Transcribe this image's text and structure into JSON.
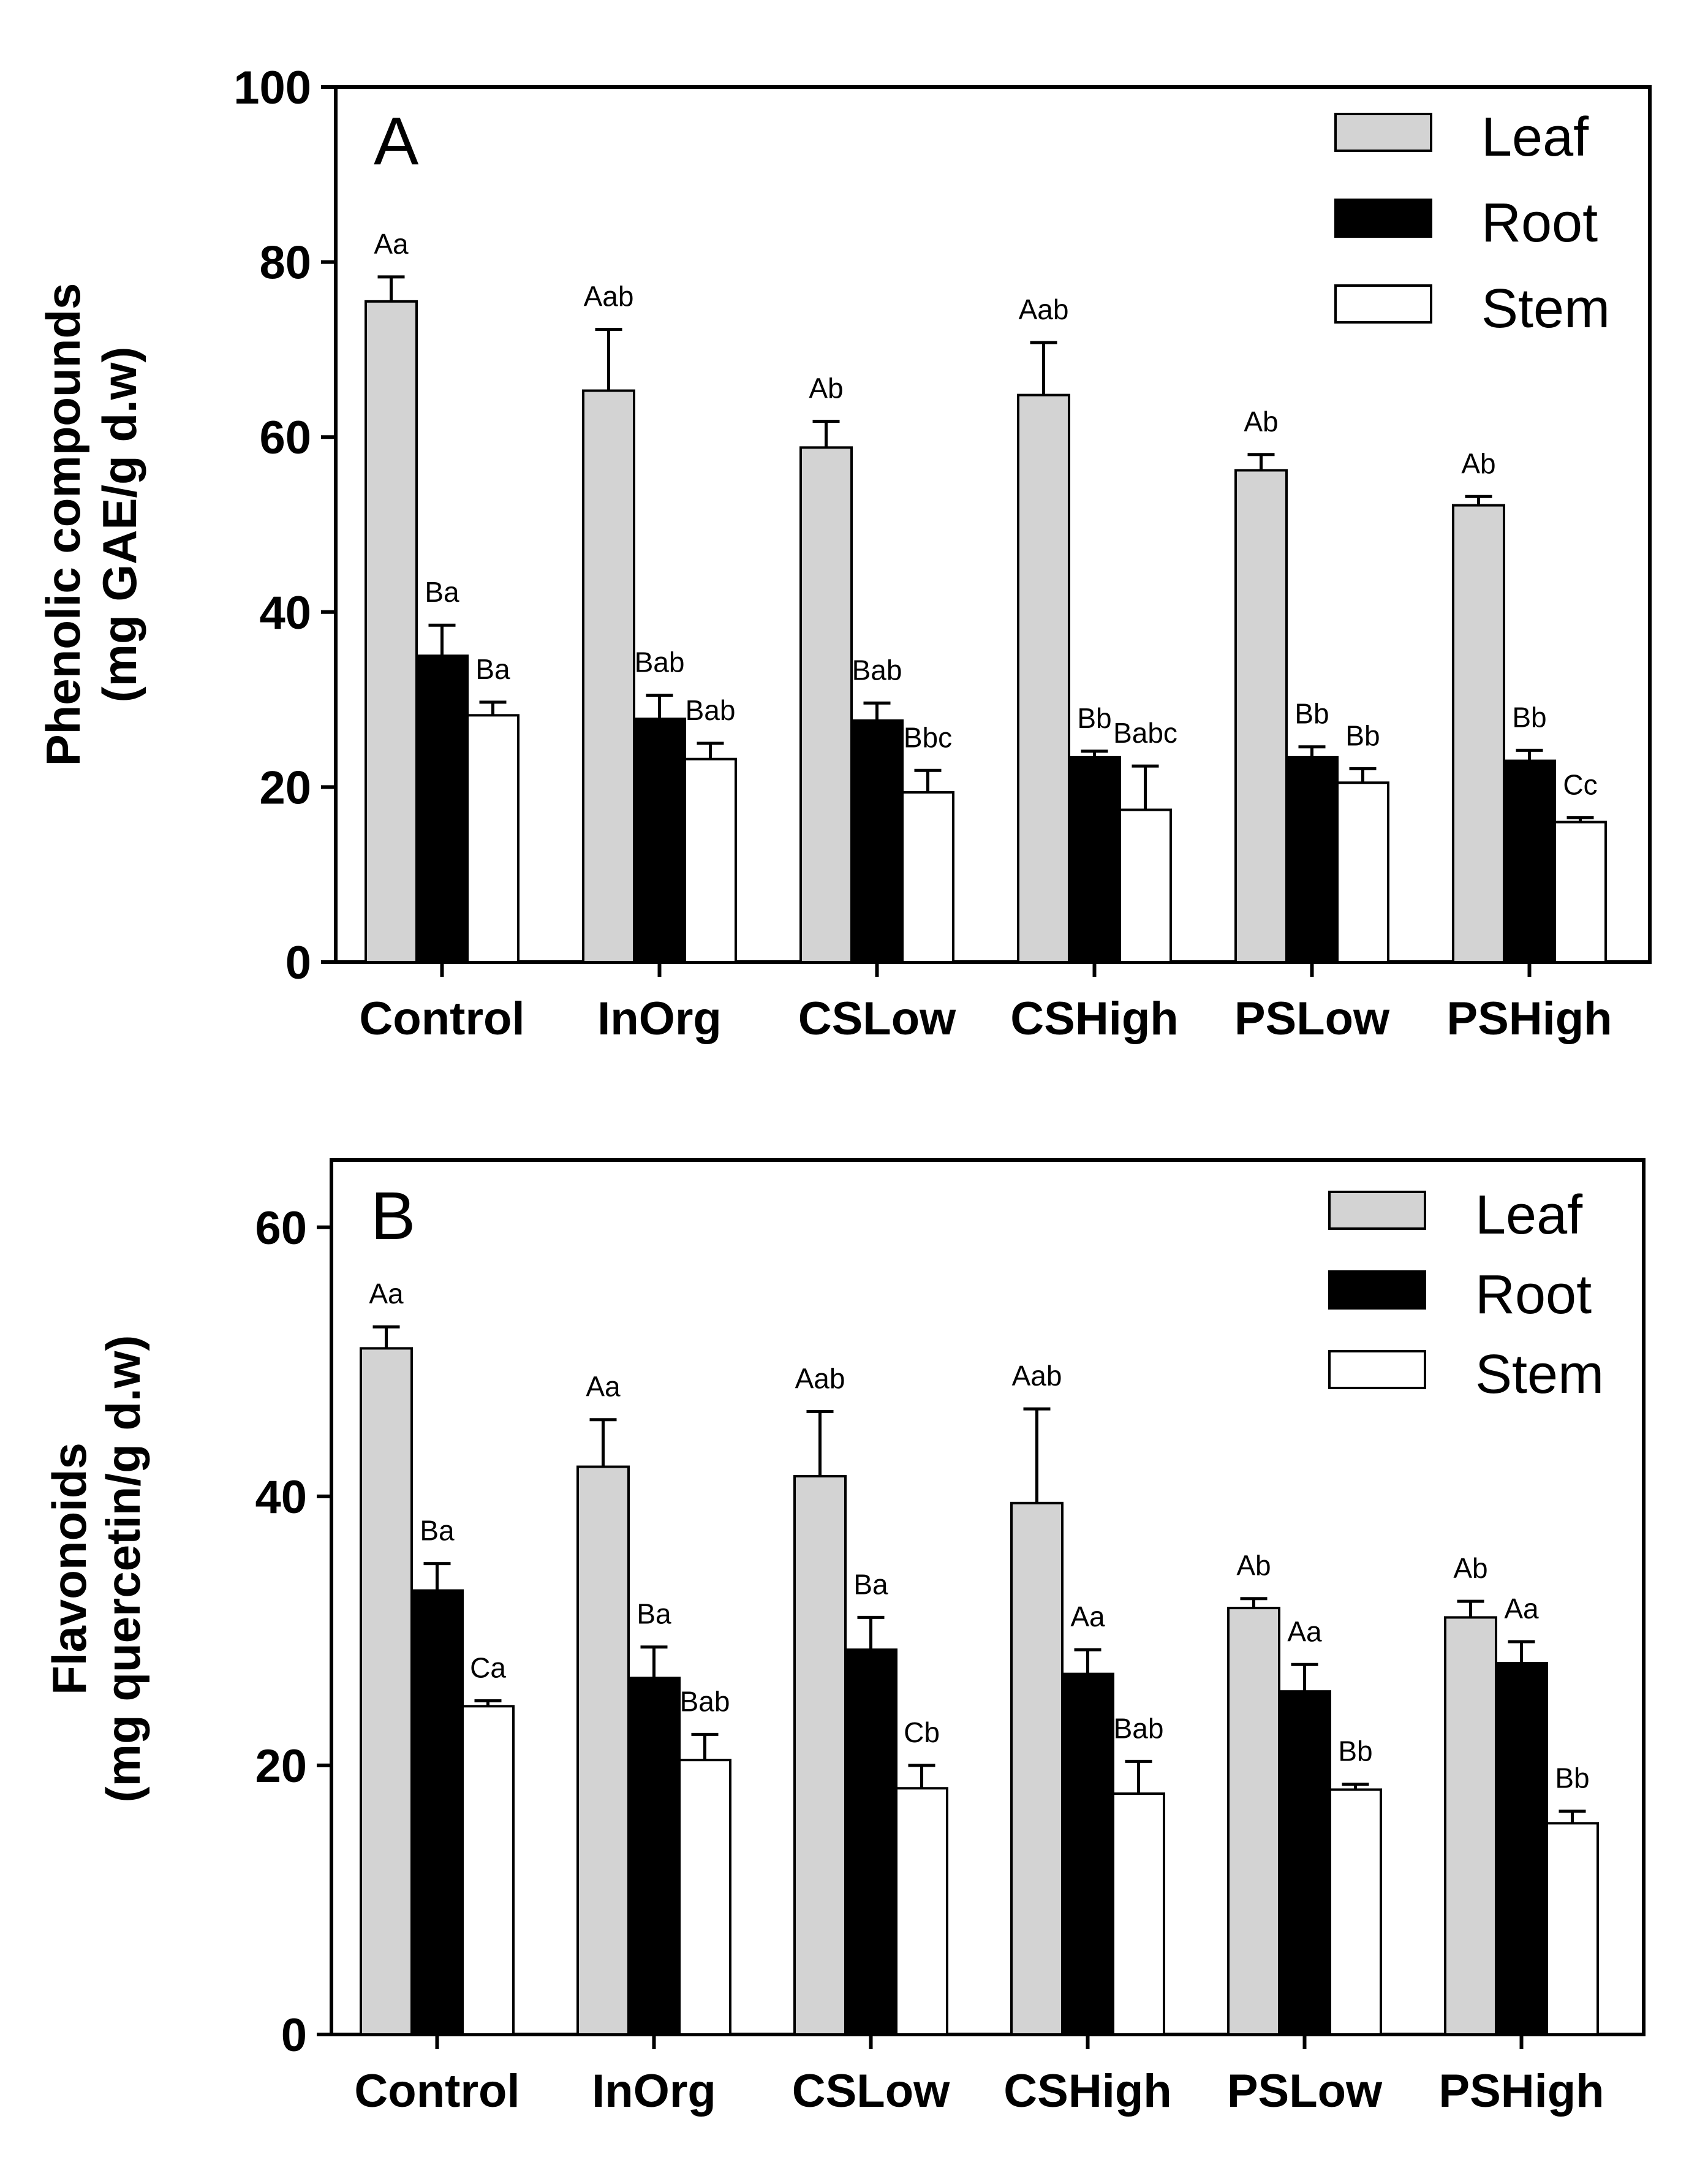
{
  "chart_data": [
    {
      "type": "bar",
      "panel": "A",
      "ylabel_line1": "Phenolic compounds",
      "ylabel_line2": "(mg GAE/g d.w)",
      "ylim": [
        0,
        100
      ],
      "yticks": [
        "0",
        "20",
        "40",
        "60",
        "80",
        "100"
      ],
      "categories": [
        "Control",
        "InOrg",
        "CSLow",
        "CSHigh",
        "PSLow",
        "PSHigh"
      ],
      "legend_position": "top-right",
      "series": [
        {
          "name": "Leaf",
          "color": "#d3d3d3",
          "values": [
            75.5,
            65.3,
            58.8,
            64.8,
            56.2,
            52.2
          ],
          "errors": [
            2.8,
            7.0,
            3.0,
            6.0,
            1.8,
            1.0
          ],
          "labels": [
            "Aa",
            "Aab",
            "Ab",
            "Aab",
            "Ab",
            "Ab"
          ]
        },
        {
          "name": "Root",
          "color": "#000000",
          "values": [
            35.0,
            27.8,
            27.6,
            23.4,
            23.4,
            23.0
          ],
          "errors": [
            3.5,
            2.7,
            2.0,
            0.7,
            1.2,
            1.2
          ],
          "labels": [
            "Ba",
            "Bab",
            "Bab",
            "Bb",
            "Bb",
            "Bb"
          ]
        },
        {
          "name": "Stem",
          "color": "#ffffff",
          "values": [
            28.2,
            23.2,
            19.4,
            17.4,
            20.5,
            16.0
          ],
          "errors": [
            1.5,
            1.8,
            2.5,
            5.0,
            1.6,
            0.5
          ],
          "labels": [
            "Ba",
            "Bab",
            "Bbc",
            "Babc",
            "Bb",
            "Cc"
          ]
        }
      ]
    },
    {
      "type": "bar",
      "panel": "B",
      "ylabel_line1": "Flavonoids",
      "ylabel_line2": "(mg quercetin/g d.w)",
      "ylim": [
        0,
        65
      ],
      "yticks": [
        "0",
        "20",
        "40",
        "60"
      ],
      "categories": [
        "Control",
        "InOrg",
        "CSLow",
        "CSHigh",
        "PSLow",
        "PSHigh"
      ],
      "legend_position": "top-right",
      "series": [
        {
          "name": "Leaf",
          "color": "#d3d3d3",
          "values": [
            51.0,
            42.2,
            41.5,
            39.5,
            31.7,
            31.0
          ],
          "errors": [
            1.6,
            3.5,
            4.8,
            7.0,
            0.7,
            1.2
          ],
          "labels": [
            "Aa",
            "Aa",
            "Aab",
            "Aab",
            "Ab",
            "Ab"
          ]
        },
        {
          "name": "Root",
          "color": "#000000",
          "values": [
            33.0,
            26.5,
            28.6,
            26.8,
            25.5,
            27.6
          ],
          "errors": [
            2.0,
            2.3,
            2.4,
            1.8,
            2.0,
            1.6
          ],
          "labels": [
            "Ba",
            "Ba",
            "Ba",
            "Aa",
            "Aa",
            "Aa"
          ]
        },
        {
          "name": "Stem",
          "color": "#ffffff",
          "values": [
            24.4,
            20.4,
            18.3,
            17.9,
            18.2,
            15.7
          ],
          "errors": [
            0.4,
            1.9,
            1.7,
            2.4,
            0.4,
            0.9
          ],
          "labels": [
            "Ca",
            "Bab",
            "Cb",
            "Bab",
            "Bb",
            "Bb"
          ]
        }
      ]
    }
  ]
}
